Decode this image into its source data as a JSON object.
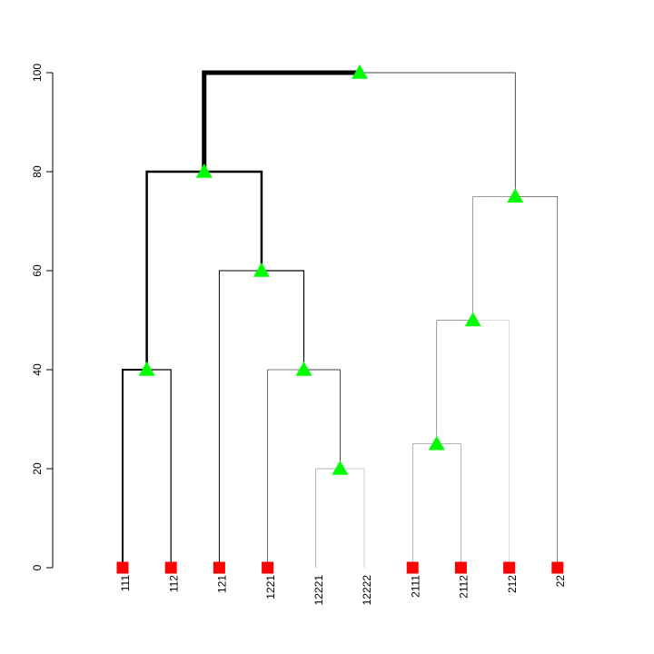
{
  "chart_data": {
    "type": "dendrogram",
    "title": "",
    "xlabel": "",
    "ylabel": "",
    "ylim": [
      0,
      100
    ],
    "y_ticks": [
      0,
      20,
      40,
      60,
      80,
      100
    ],
    "y_tick_labels": [
      "0",
      "20",
      "40",
      "60",
      "80",
      "100"
    ],
    "leaves": [
      "111",
      "112",
      "121",
      "1221",
      "12221",
      "12222",
      "2111",
      "2112",
      "212",
      "22"
    ],
    "leaf_markers": [
      "111",
      "112",
      "121",
      "1221",
      "2111",
      "2112",
      "212",
      "22"
    ],
    "nodes": [
      {
        "id": "11",
        "height": 40,
        "left": "111",
        "right": "112",
        "marker": true
      },
      {
        "id": "1222",
        "height": 20,
        "left": "12221",
        "right": "12222",
        "marker": true
      },
      {
        "id": "122",
        "height": 40,
        "left": "1221",
        "right": "1222",
        "marker": true
      },
      {
        "id": "12",
        "height": 60,
        "left": "121",
        "right": "122",
        "marker": true
      },
      {
        "id": "1",
        "height": 80,
        "left": "11",
        "right": "12",
        "marker": true
      },
      {
        "id": "211",
        "height": 25,
        "left": "2111",
        "right": "2112",
        "marker": true
      },
      {
        "id": "21",
        "height": 50,
        "left": "211",
        "right": "212",
        "marker": true
      },
      {
        "id": "2",
        "height": 75,
        "left": "21",
        "right": "22",
        "marker": true
      },
      {
        "id": "root",
        "height": 100,
        "left": "1",
        "right": "2",
        "marker": true
      }
    ],
    "edge_weights": {
      "111": 2,
      "112": 1.2,
      "121": 1,
      "1221": 0.6,
      "12221": 0.3,
      "12222": 0.2,
      "2111": 0.3,
      "2112": 0.3,
      "212": 0.15,
      "22": 0.5,
      "11": 2.5,
      "12": 2.5,
      "1222": 0.7,
      "122": 1.2,
      "211": 0.4,
      "21": 0.4,
      "2": 0.7,
      "1": 5
    },
    "colors": {
      "line": "#000000",
      "node_marker": "#00ff00",
      "leaf_marker": "#ff0000"
    }
  }
}
